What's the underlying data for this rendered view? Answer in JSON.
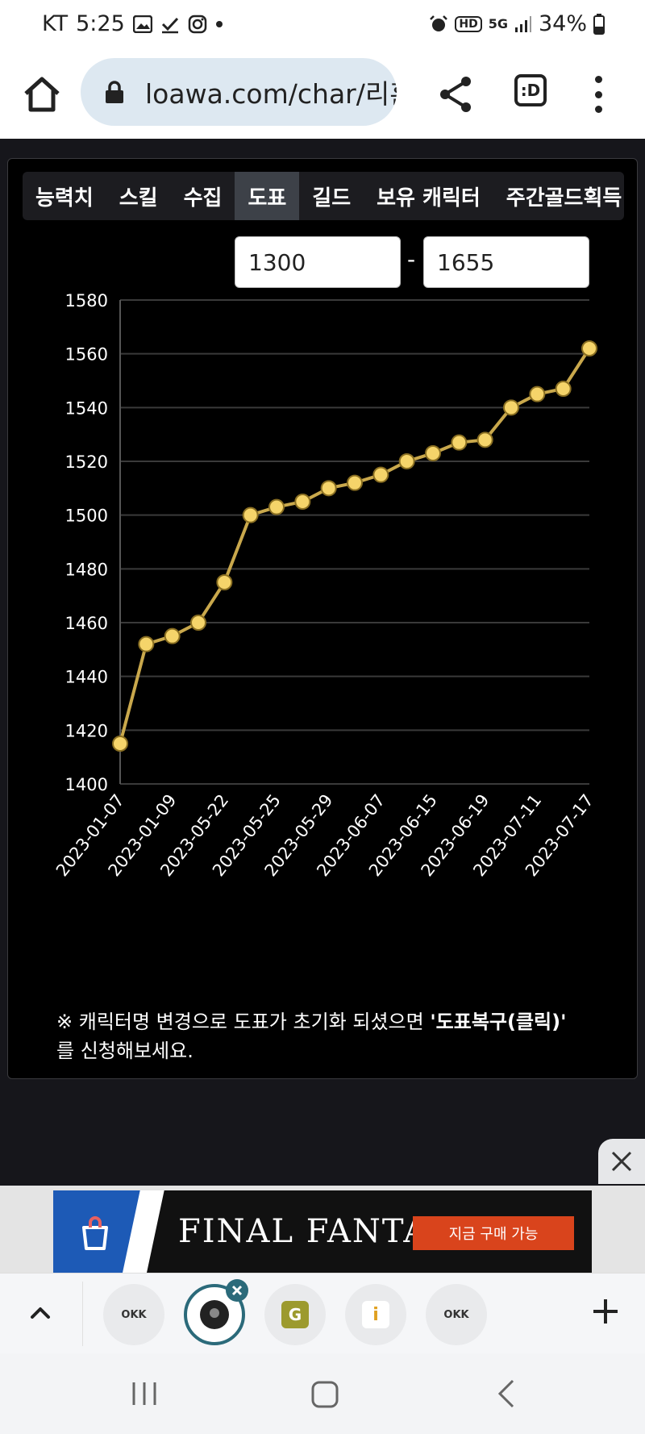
{
  "status": {
    "carrier": "KT",
    "time": "5:25",
    "battery": "34%",
    "icons_left": [
      "gallery-icon",
      "check-icon",
      "instagram-icon",
      "dot-icon"
    ],
    "icons_right": [
      "alarm-icon",
      "hd-icon",
      "5g-icon",
      "signal-icon",
      "battery-icon"
    ],
    "hd_label": "HD",
    "net_label": "5G"
  },
  "browser": {
    "url": "loawa.com/char/리훈",
    "tab_label": ":D"
  },
  "tabs": [
    {
      "label": "능력치",
      "active": false
    },
    {
      "label": "스킬",
      "active": false
    },
    {
      "label": "수집",
      "active": false
    },
    {
      "label": "도표",
      "active": true
    },
    {
      "label": "길드",
      "active": false
    },
    {
      "label": "보유 캐릭터",
      "active": false
    },
    {
      "label": "주간골드획득",
      "active": false
    }
  ],
  "range": {
    "min": "1300",
    "max": "1655",
    "separator": "-"
  },
  "chart_data": {
    "type": "line",
    "x": [
      "2023-01-07",
      "",
      "2023-01-09",
      "",
      "2023-05-22",
      "",
      "2023-05-25",
      "",
      "2023-05-29",
      "",
      "2023-06-07",
      "",
      "2023-06-15",
      "",
      "2023-06-19",
      "",
      "2023-07-11",
      "",
      "2023-07-17"
    ],
    "x_tick_labels": [
      "2023-01-07",
      "2023-01-09",
      "2023-05-22",
      "2023-05-25",
      "2023-05-29",
      "2023-06-07",
      "2023-06-15",
      "2023-06-19",
      "2023-07-11",
      "2023-07-17"
    ],
    "values": [
      1415,
      1452,
      1455,
      1460,
      1475,
      1500,
      1503,
      1505,
      1510,
      1512,
      1515,
      1520,
      1523,
      1527,
      1528,
      1540,
      1545,
      1547,
      1562
    ],
    "ylim": [
      1400,
      1580
    ],
    "y_ticks": [
      1400,
      1420,
      1440,
      1460,
      1480,
      1500,
      1520,
      1540,
      1560,
      1580
    ],
    "grid": true,
    "line_color": "#c9a84c",
    "point_color": "#f5d46a"
  },
  "note": {
    "prefix": "※ 캐릭터명 변경으로 도표가 초기화 되셨으면 ",
    "link": "'도표복구(클릭)'",
    "suffix": "를 신청해보세요."
  },
  "ad": {
    "title": "FINAL FANTASY XVI",
    "button": "지금 구매 가능"
  },
  "tabstrip": {
    "bubbles": [
      "OKK",
      "",
      "G",
      "i",
      "OKK"
    ]
  }
}
